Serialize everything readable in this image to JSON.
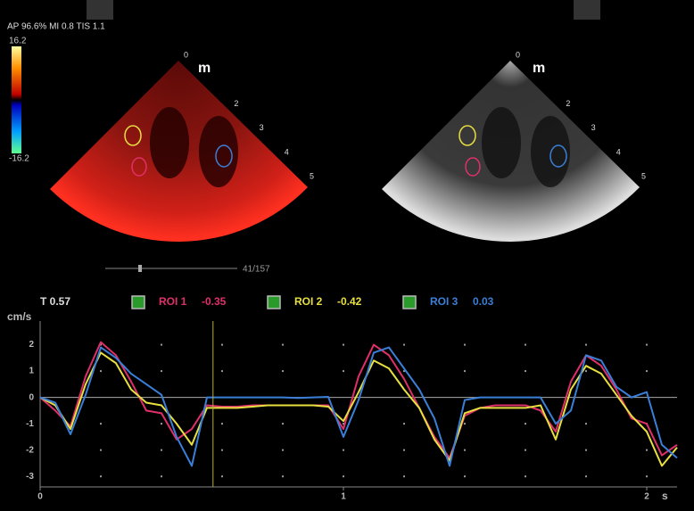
{
  "header": {
    "text": "AP 96.6%  MI 0.8  TIS 1.1"
  },
  "colorbar": {
    "max_label": "16.2",
    "min_label": "-16.2"
  },
  "depth_labels": [
    0,
    2,
    3,
    4,
    5
  ],
  "slider": {
    "label": "41/157"
  },
  "chart_data": {
    "type": "line",
    "y_label": "cm/s",
    "x_label": "s",
    "cursor": {
      "value": 0.57,
      "label": "T 0.57"
    },
    "x": [
      0,
      0.05,
      0.1,
      0.15,
      0.2,
      0.25,
      0.3,
      0.35,
      0.4,
      0.45,
      0.5,
      0.55,
      0.6,
      0.65,
      0.7,
      0.75,
      0.8,
      0.85,
      0.9,
      0.95,
      1.0,
      1.05,
      1.1,
      1.15,
      1.2,
      1.25,
      1.3,
      1.35,
      1.4,
      1.45,
      1.5,
      1.55,
      1.6,
      1.65,
      1.7,
      1.75,
      1.8,
      1.85,
      1.9,
      1.95,
      2.0,
      2.05,
      2.1
    ],
    "series": [
      {
        "name": "ROI 1",
        "reading": -0.35,
        "color": "#e0306a",
        "values": [
          0,
          -0.5,
          -1.1,
          0.8,
          2.1,
          1.6,
          0.6,
          -0.5,
          -0.6,
          -1.6,
          -1.2,
          -0.3,
          -0.35,
          -0.35,
          -0.3,
          -0.3,
          -0.3,
          -0.3,
          -0.3,
          -0.3,
          -1.2,
          0.8,
          2.0,
          1.6,
          0.7,
          -0.4,
          -1.5,
          -2.3,
          -0.7,
          -0.4,
          -0.3,
          -0.3,
          -0.3,
          -0.5,
          -1.3,
          0.6,
          1.6,
          1.2,
          0.3,
          -0.8,
          -1.0,
          -2.2,
          -1.8
        ]
      },
      {
        "name": "ROI 2",
        "reading": -0.42,
        "color": "#e8e040",
        "values": [
          0,
          -0.3,
          -1.2,
          0.5,
          1.7,
          1.3,
          0.3,
          -0.2,
          -0.3,
          -1.0,
          -1.8,
          -0.4,
          -0.4,
          -0.4,
          -0.35,
          -0.3,
          -0.3,
          -0.3,
          -0.3,
          -0.35,
          -0.9,
          0.2,
          1.4,
          1.1,
          0.3,
          -0.4,
          -1.6,
          -2.4,
          -0.6,
          -0.4,
          -0.4,
          -0.4,
          -0.4,
          -0.3,
          -1.6,
          0.3,
          1.2,
          0.9,
          0.1,
          -0.7,
          -1.3,
          -2.6,
          -1.9
        ]
      },
      {
        "name": "ROI 3",
        "reading": 0.03,
        "color": "#3a7fd8",
        "values": [
          0,
          -0.2,
          -1.4,
          0.1,
          1.9,
          1.5,
          0.9,
          0.5,
          0.1,
          -1.5,
          -2.6,
          0,
          0,
          0,
          0,
          0,
          0,
          -0.02,
          0,
          0.02,
          -1.5,
          -0.1,
          1.7,
          1.9,
          1.1,
          0.3,
          -0.8,
          -2.6,
          -0.1,
          0,
          0,
          0,
          0,
          0,
          -1.0,
          -0.5,
          1.6,
          1.4,
          0.4,
          0.0,
          0.2,
          -1.8,
          -2.3
        ]
      }
    ],
    "xlim": [
      0,
      2.1
    ],
    "ylim": [
      -3.4,
      2.9
    ],
    "xticks": [
      0,
      1,
      2
    ],
    "yticks": [
      2,
      1,
      0,
      -1,
      -2,
      -3
    ],
    "grid": "dots"
  }
}
